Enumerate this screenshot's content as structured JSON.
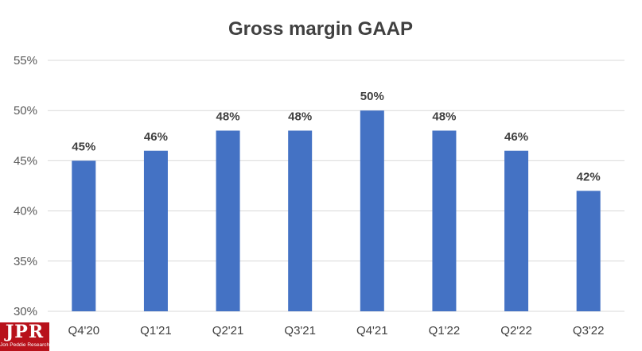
{
  "chart_data": {
    "type": "bar",
    "title": "Gross margin GAAP",
    "xlabel": "",
    "ylabel": "",
    "categories": [
      "Q4'20",
      "Q1'21",
      "Q2'21",
      "Q3'21",
      "Q4'21",
      "Q1'22",
      "Q2'22",
      "Q3'22"
    ],
    "values": [
      45,
      46,
      48,
      48,
      50,
      48,
      46,
      42
    ],
    "data_labels": [
      "45%",
      "46%",
      "48%",
      "48%",
      "50%",
      "48%",
      "46%",
      "42%"
    ],
    "ylim": [
      30,
      55
    ],
    "yticks": [
      30,
      35,
      40,
      45,
      50,
      55
    ],
    "ytick_labels": [
      "30%",
      "35%",
      "40%",
      "45%",
      "50%",
      "55%"
    ],
    "grid": true,
    "legend": "none",
    "bar_color": "#4472c4"
  },
  "logo": {
    "main": "JPR",
    "sub": "Jon Peddie Research"
  }
}
